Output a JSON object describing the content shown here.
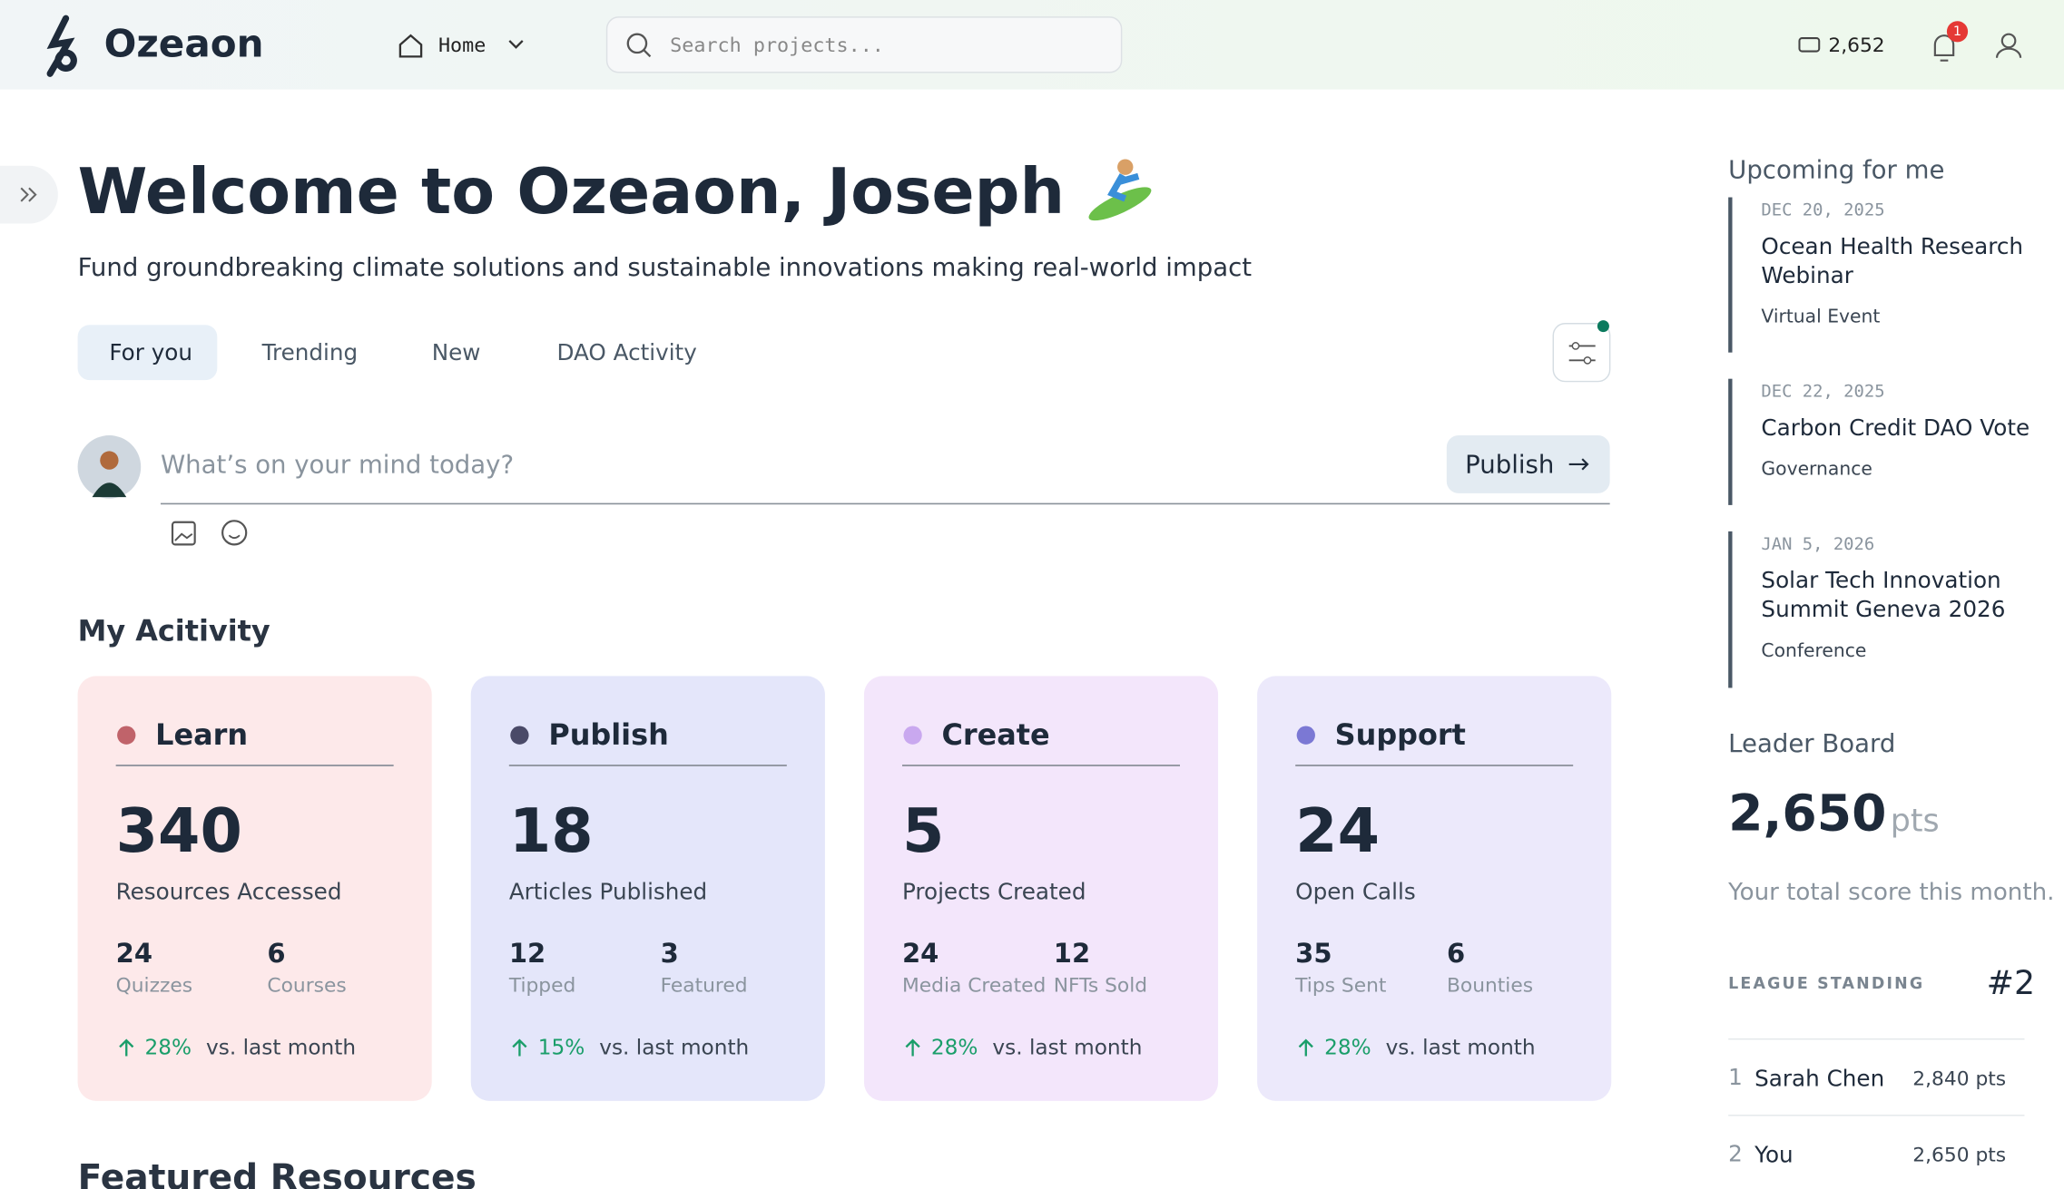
{
  "header": {
    "logo": "Ozeaon",
    "nav": "Home",
    "search_placeholder": "Search projects...",
    "points": "2,652",
    "notifications": "1"
  },
  "hero": {
    "title": "Welcome to Ozeaon, Joseph",
    "subtitle": "Fund groundbreaking climate solutions and sustainable innovations making real-world impact"
  },
  "tabs": [
    "For you",
    "Trending",
    "New",
    "DAO Activity"
  ],
  "composer": {
    "placeholder": "What’s on your mind today?",
    "button": "Publish"
  },
  "activity": {
    "title": "My Acitivity",
    "cards": [
      {
        "title": "Learn",
        "value": 340,
        "label": "Resources Accessed",
        "stats": [
          {
            "value": 24,
            "label": "Quizzes"
          },
          {
            "value": 6,
            "label": "Courses"
          }
        ],
        "change": "28%",
        "change_label": "vs. last month"
      },
      {
        "title": "Publish",
        "value": 18,
        "label": "Articles Published",
        "stats": [
          {
            "value": 12,
            "label": "Tipped"
          },
          {
            "value": 3,
            "label": "Featured"
          }
        ],
        "change": "15%",
        "change_label": "vs. last month"
      },
      {
        "title": "Create",
        "value": 5,
        "label": "Projects Created",
        "stats": [
          {
            "value": 24,
            "label": "Media Created"
          },
          {
            "value": 12,
            "label": "NFTs Sold"
          }
        ],
        "change": "28%",
        "change_label": "vs. last month"
      },
      {
        "title": "Support",
        "value": 24,
        "label": "Open Calls",
        "stats": [
          {
            "value": 35,
            "label": "Tips Sent"
          },
          {
            "value": 6,
            "label": "Bounties"
          }
        ],
        "change": "28%",
        "change_label": "vs. last month"
      }
    ]
  },
  "featured": {
    "title": "Featured Resources"
  },
  "sidebar": {
    "upcoming_title": "Upcoming for me",
    "events": [
      {
        "date": "DEC 20, 2025",
        "title": "Ocean Health Research Webinar",
        "type": "Virtual Event"
      },
      {
        "date": "DEC 22, 2025",
        "title": "Carbon Credit DAO Vote",
        "type": "Governance"
      },
      {
        "date": "JAN 5, 2026",
        "title": "Solar Tech Innovation Summit Geneva 2026",
        "type": "Conference"
      }
    ],
    "leaderboard": {
      "title": "Leader Board",
      "score": "2,650",
      "unit": "pts",
      "caption": "Your total score this month.",
      "standing_label": "LEAGUE STANDING",
      "standing": "#2",
      "rows": [
        {
          "rank": 1,
          "name": "Sarah Chen",
          "points": "2,840 pts"
        },
        {
          "rank": 2,
          "name": "You",
          "points": "2,650 pts"
        }
      ]
    }
  }
}
